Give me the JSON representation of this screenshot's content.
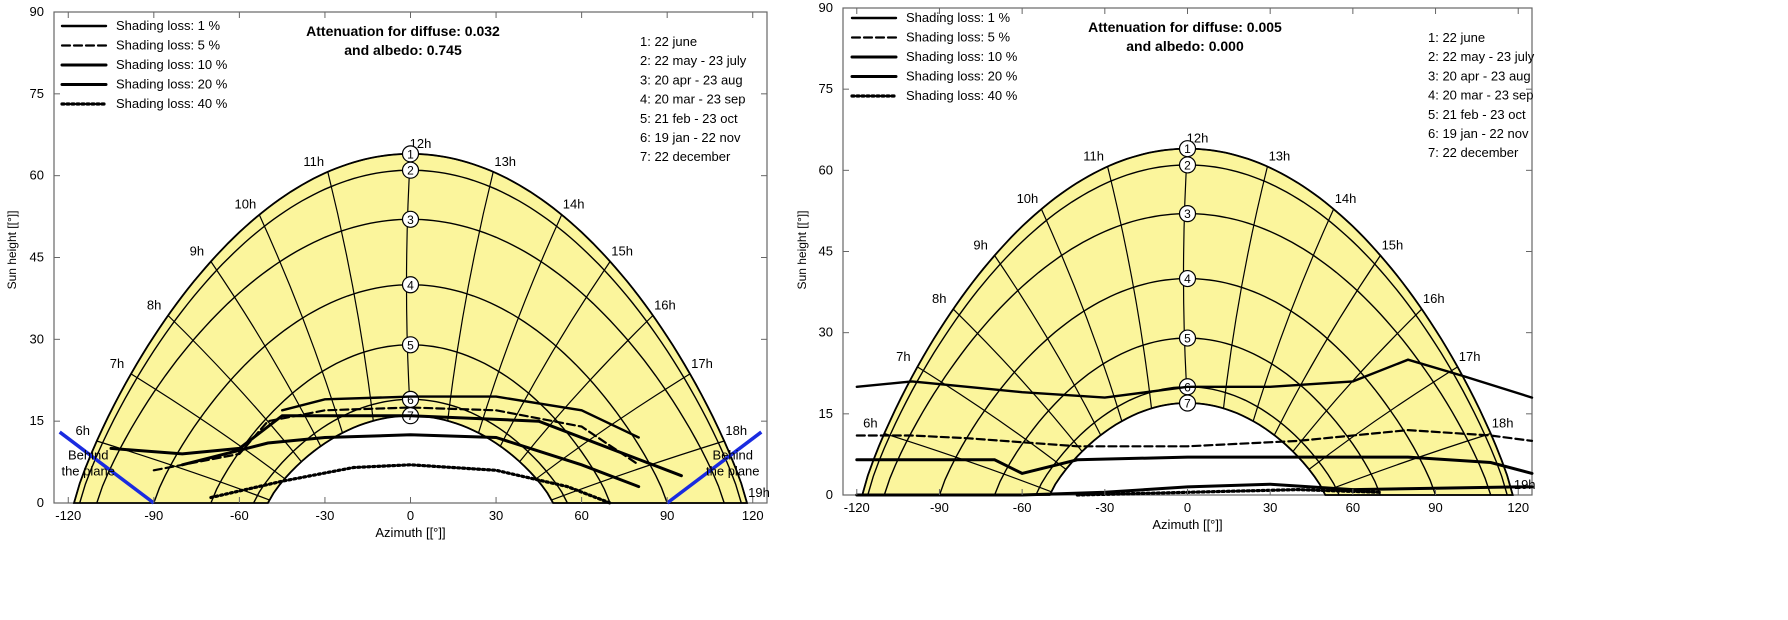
{
  "chart_data": [
    {
      "type": "line",
      "title": "Attenuation for diffuse: 0.032",
      "subtitle": "and albedo: 0.745",
      "xlabel": "Azimuth  [[°]]",
      "ylabel": "Sun   height   [[°]]",
      "xlim": [
        -125,
        125
      ],
      "ylim": [
        0,
        90
      ],
      "x_ticks": [
        "-120",
        "-90",
        "-60",
        "-30",
        "0",
        "30",
        "60",
        "90",
        "120"
      ],
      "y_ticks": [
        "0",
        "15",
        "30",
        "45",
        "60",
        "75",
        "90"
      ],
      "grid": false,
      "legend_position": "top-left",
      "legend": [
        "Shading loss:  1 %",
        "Shading loss:  5 %",
        "Shading loss:  10 %",
        "Shading loss:  20 %",
        "Shading loss:  40 %"
      ],
      "date_list": [
        "1: 22 june",
        "2: 22 may - 23 july",
        "3: 20 apr - 23 aug",
        "4: 20 mar - 23 sep",
        "5: 21 feb - 23 oct",
        "6: 19 jan - 22 nov",
        "7: 22 december"
      ],
      "hour_labels": [
        "6h",
        "7h",
        "8h",
        "9h",
        "10h",
        "11h",
        "12h",
        "13h",
        "14h",
        "15h",
        "16h",
        "17h",
        "18h",
        "19h"
      ],
      "plane_label": "Behind the plane",
      "plane_label_left": [
        "Behind",
        "the plane"
      ],
      "plane_label_right": [
        "Behind",
        "the plane"
      ],
      "date_max_heights": [
        64,
        61,
        52,
        40,
        29,
        19,
        16
      ],
      "date_half_widths": [
        118,
        116,
        110,
        90,
        70,
        55,
        50
      ],
      "hour_azimuths": [
        -110,
        -98,
        -85,
        -70,
        -53,
        -29,
        0,
        29,
        53,
        70,
        85,
        98,
        110,
        120
      ],
      "shading_curves": [
        {
          "name": "1 %",
          "points": [
            [
              -45,
              17
            ],
            [
              -30,
              19
            ],
            [
              0,
              19.5
            ],
            [
              30,
              19.5
            ],
            [
              60,
              17
            ],
            [
              80,
              12
            ]
          ]
        },
        {
          "name": "5 %",
          "points": [
            [
              -90,
              6
            ],
            [
              -60,
              9
            ],
            [
              -50,
              15
            ],
            [
              -30,
              17
            ],
            [
              0,
              17.5
            ],
            [
              30,
              17
            ],
            [
              60,
              14
            ],
            [
              80,
              7
            ]
          ]
        },
        {
          "name": "10 %",
          "points": [
            [
              -105,
              10
            ],
            [
              -80,
              9
            ],
            [
              -60,
              10
            ],
            [
              -45,
              16
            ],
            [
              0,
              16
            ],
            [
              45,
              15
            ],
            [
              80,
              8
            ],
            [
              95,
              5
            ]
          ]
        },
        {
          "name": "20 %",
          "points": [
            [
              -80,
              7
            ],
            [
              -50,
              11
            ],
            [
              -30,
              12
            ],
            [
              0,
              12.5
            ],
            [
              30,
              12
            ],
            [
              60,
              7
            ],
            [
              80,
              3
            ]
          ]
        },
        {
          "name": "40 %",
          "points": [
            [
              -70,
              1
            ],
            [
              -45,
              4
            ],
            [
              -20,
              6.5
            ],
            [
              0,
              7
            ],
            [
              30,
              6
            ],
            [
              55,
              3
            ],
            [
              70,
              0
            ]
          ]
        }
      ]
    },
    {
      "type": "line",
      "title": "Attenuation for diffuse: 0.005",
      "subtitle": "and albedo: 0.000",
      "xlabel": "Azimuth  [[°]]",
      "ylabel": "Sun height  [[°]]",
      "xlim": [
        -125,
        125
      ],
      "ylim": [
        0,
        90
      ],
      "x_ticks": [
        "-120",
        "-90",
        "-60",
        "-30",
        "0",
        "30",
        "60",
        "90",
        "120"
      ],
      "y_ticks": [
        "0",
        "15",
        "30",
        "45",
        "60",
        "75",
        "90"
      ],
      "grid": false,
      "legend_position": "top-left",
      "legend": [
        "Shading loss:  1 %",
        "Shading loss:  5 %",
        "Shading loss:  10 %",
        "Shading loss:  20 %",
        "Shading loss:  40 %"
      ],
      "date_list": [
        "1: 22 june",
        "2: 22 may - 23 july",
        "3: 20 apr - 23 aug",
        "4: 20 mar - 23 sep",
        "5: 21 feb - 23 oct",
        "6: 19 jan - 22 nov",
        "7: 22 december"
      ],
      "hour_labels": [
        "6h",
        "7h",
        "8h",
        "9h",
        "10h",
        "11h",
        "12h",
        "13h",
        "14h",
        "15h",
        "16h",
        "17h",
        "18h",
        "19h"
      ],
      "plane_label": "",
      "plane_label_left": [],
      "plane_label_right": [],
      "date_max_heights": [
        64,
        61,
        52,
        40,
        29,
        20,
        17
      ],
      "date_half_widths": [
        118,
        116,
        110,
        90,
        70,
        55,
        50
      ],
      "hour_azimuths": [
        -110,
        -98,
        -85,
        -70,
        -53,
        -29,
        0,
        29,
        53,
        70,
        85,
        98,
        110,
        120
      ],
      "shading_curves": [
        {
          "name": "1 %",
          "points": [
            [
              -120,
              20
            ],
            [
              -100,
              21
            ],
            [
              -60,
              19
            ],
            [
              -30,
              18
            ],
            [
              0,
              20
            ],
            [
              30,
              20
            ],
            [
              60,
              21
            ],
            [
              80,
              25
            ],
            [
              100,
              22
            ],
            [
              125,
              18
            ]
          ]
        },
        {
          "name": "5 %",
          "points": [
            [
              -120,
              11
            ],
            [
              -100,
              11
            ],
            [
              -80,
              10.5
            ],
            [
              -40,
              9
            ],
            [
              0,
              9
            ],
            [
              40,
              10
            ],
            [
              80,
              12
            ],
            [
              110,
              11
            ],
            [
              125,
              10
            ]
          ]
        },
        {
          "name": "10 %",
          "points": [
            [
              -120,
              6.5
            ],
            [
              -90,
              6.5
            ],
            [
              -70,
              6.5
            ],
            [
              -60,
              4
            ],
            [
              -40,
              6.5
            ],
            [
              0,
              7
            ],
            [
              40,
              7
            ],
            [
              80,
              7
            ],
            [
              110,
              6
            ],
            [
              125,
              4
            ]
          ]
        },
        {
          "name": "20 %",
          "points": [
            [
              -120,
              0
            ],
            [
              -60,
              0
            ],
            [
              -30,
              0.5
            ],
            [
              0,
              1.5
            ],
            [
              30,
              2
            ],
            [
              60,
              1
            ],
            [
              120,
              1.5
            ],
            [
              125,
              1.5
            ]
          ]
        },
        {
          "name": "40 %",
          "points": [
            [
              -40,
              0
            ],
            [
              0,
              0.5
            ],
            [
              40,
              1
            ],
            [
              70,
              0.5
            ]
          ]
        }
      ]
    }
  ]
}
